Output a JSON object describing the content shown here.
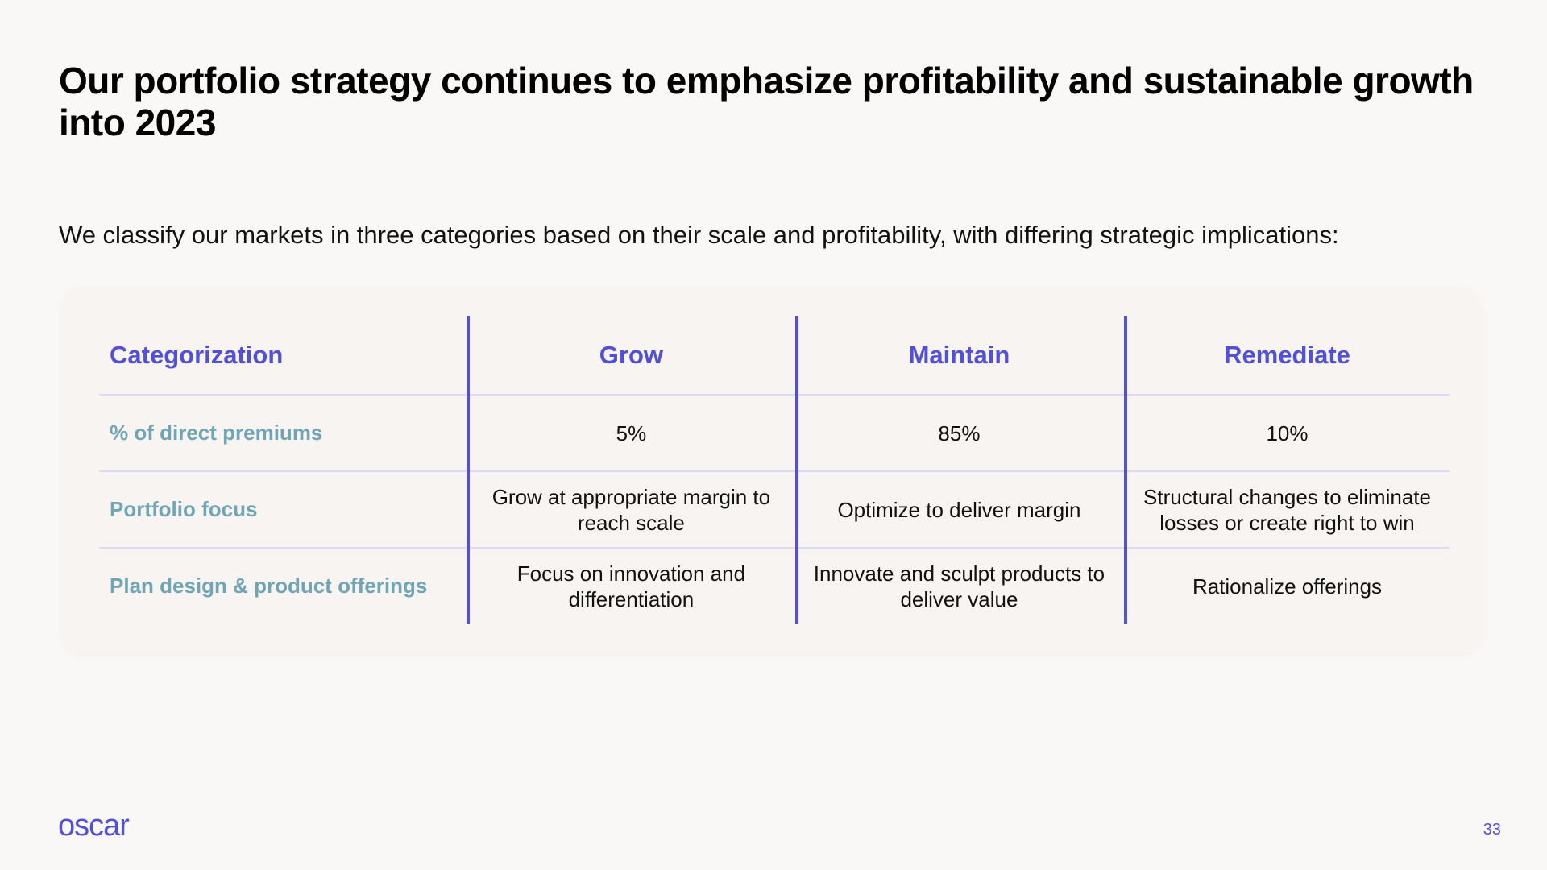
{
  "slide": {
    "title": "Our portfolio strategy continues to emphasize profitability and sustainable growth into 2023",
    "subtitle": "We classify our markets in three categories based on their scale and profitability, with differing strategic implications:",
    "page_number": "33",
    "logo_text": "oscar"
  },
  "table": {
    "headers": [
      "Categorization",
      "Grow",
      "Maintain",
      "Remediate"
    ],
    "rows": [
      {
        "label": "% of direct premiums",
        "cells": [
          "5%",
          "85%",
          "10%"
        ]
      },
      {
        "label": "Portfolio focus",
        "cells": [
          "Grow at appropriate margin to reach scale",
          "Optimize to deliver margin",
          "Structural changes to eliminate losses or create right to win"
        ]
      },
      {
        "label": "Plan design & product offerings",
        "cells": [
          "Focus on innovation and differentiation",
          "Innovate and sculpt products to deliver value",
          "Rationalize offerings"
        ]
      }
    ]
  },
  "colors": {
    "accent": "#5350d8",
    "row_label": "#6fa5b5",
    "background": "#faf8f6"
  }
}
